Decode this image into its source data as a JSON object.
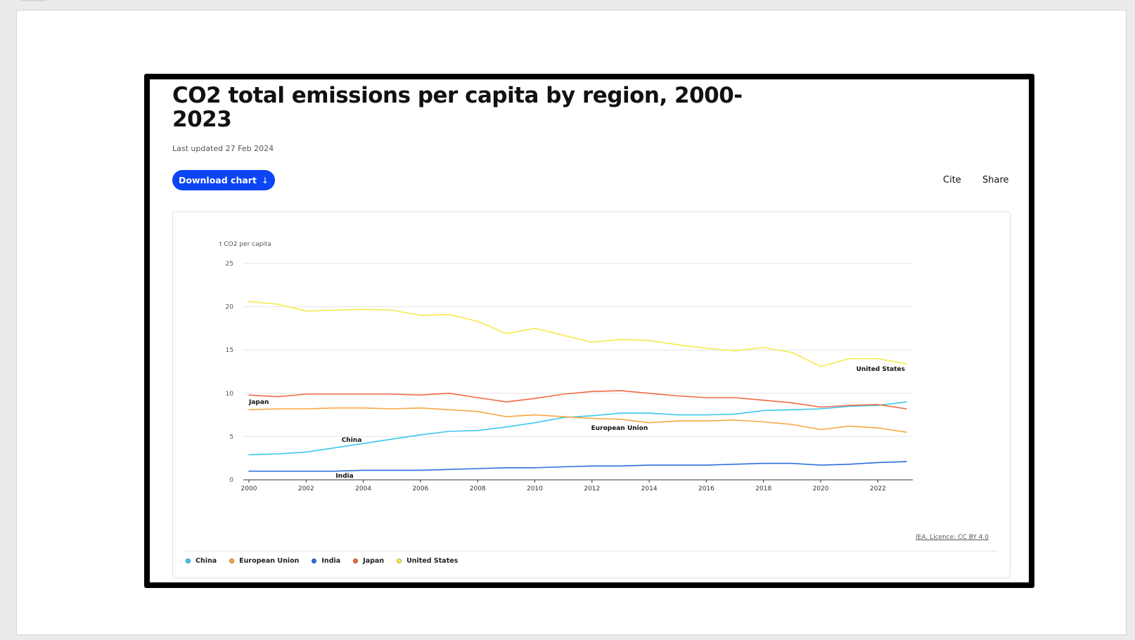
{
  "page": {
    "title": "CO2 total emissions per capita by region, 2000-2023",
    "updated": "Last updated 27 Feb 2024",
    "download_label": "Download chart",
    "download_icon": "download-arrow-icon",
    "cite_label": "Cite",
    "share_label": "Share",
    "licence": "IEA. Licence: CC BY 4.0"
  },
  "chart_data": {
    "type": "line",
    "title": "CO2 total emissions per capita by region, 2000-2023",
    "xlabel": "",
    "ylabel": "t CO2 per capita",
    "xlim": [
      2000,
      2023
    ],
    "ylim": [
      0,
      25
    ],
    "yticks": [
      0,
      5,
      10,
      15,
      20,
      25
    ],
    "xticks": [
      2000,
      2002,
      2004,
      2006,
      2008,
      2010,
      2012,
      2014,
      2016,
      2018,
      2020,
      2022
    ],
    "grid": true,
    "legend_position": "bottom",
    "x": [
      2000,
      2001,
      2002,
      2003,
      2004,
      2005,
      2006,
      2007,
      2008,
      2009,
      2010,
      2011,
      2012,
      2013,
      2014,
      2015,
      2016,
      2017,
      2018,
      2019,
      2020,
      2021,
      2022,
      2023
    ],
    "series": [
      {
        "name": "China",
        "color": "#3dc7ea",
        "label": "China",
        "values": [
          2.9,
          3.0,
          3.2,
          3.7,
          4.2,
          4.7,
          5.2,
          5.6,
          5.7,
          6.1,
          6.6,
          7.2,
          7.4,
          7.7,
          7.7,
          7.5,
          7.5,
          7.6,
          8.0,
          8.1,
          8.2,
          8.5,
          8.6,
          9.0
        ]
      },
      {
        "name": "European Union",
        "color": "#f9a73e",
        "label": "European Union",
        "values": [
          8.1,
          8.2,
          8.2,
          8.3,
          8.3,
          8.2,
          8.3,
          8.1,
          7.9,
          7.3,
          7.5,
          7.3,
          7.1,
          7.0,
          6.6,
          6.8,
          6.8,
          6.9,
          6.7,
          6.4,
          5.8,
          6.2,
          6.0,
          5.5
        ]
      },
      {
        "name": "India",
        "color": "#2e6fe0",
        "label": "India",
        "values": [
          1.0,
          1.0,
          1.0,
          1.0,
          1.1,
          1.1,
          1.1,
          1.2,
          1.3,
          1.4,
          1.4,
          1.5,
          1.6,
          1.6,
          1.7,
          1.7,
          1.7,
          1.8,
          1.9,
          1.9,
          1.7,
          1.8,
          2.0,
          2.1
        ]
      },
      {
        "name": "Japan",
        "color": "#f26a45",
        "label": "Japan",
        "values": [
          9.8,
          9.6,
          9.9,
          9.9,
          9.9,
          9.9,
          9.8,
          10.0,
          9.5,
          9.0,
          9.4,
          9.9,
          10.2,
          10.3,
          10.0,
          9.7,
          9.5,
          9.5,
          9.2,
          8.9,
          8.4,
          8.6,
          8.7,
          8.2
        ]
      },
      {
        "name": "United States",
        "color": "#f7ea4a",
        "label": "United States",
        "values": [
          20.6,
          20.3,
          19.5,
          19.6,
          19.7,
          19.6,
          19.0,
          19.1,
          18.3,
          16.9,
          17.5,
          16.7,
          15.9,
          16.2,
          16.1,
          15.6,
          15.2,
          14.9,
          15.3,
          14.7,
          13.1,
          14.0,
          14.0,
          13.4
        ]
      }
    ],
    "annotations": [
      "Japan",
      "China",
      "India",
      "European Union",
      "United States"
    ]
  }
}
